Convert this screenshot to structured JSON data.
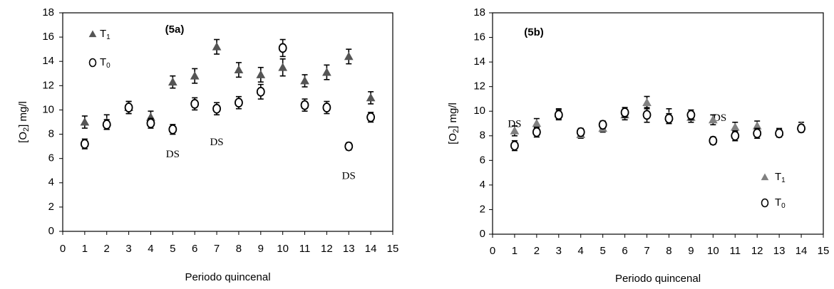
{
  "chart_data": [
    {
      "type": "scatter",
      "panel_label": "(5a)",
      "xlabel": "Periodo quincenal",
      "ylabel_prefix": "[O",
      "ylabel_sub": "2",
      "ylabel_suffix": "] mg/l",
      "xlim": [
        0,
        15
      ],
      "ylim": [
        0,
        18
      ],
      "xticks": [
        "0",
        "1",
        "2",
        "3",
        "4",
        "5",
        "6",
        "7",
        "8",
        "9",
        "10",
        "11",
        "12",
        "13",
        "14",
        "15"
      ],
      "yticks": [
        "0",
        "2",
        "4",
        "6",
        "8",
        "10",
        "12",
        "14",
        "16",
        "18"
      ],
      "legend_position": "top-left",
      "marker_colors": {
        "T1": "#555555",
        "T0": "#000000"
      },
      "series": [
        {
          "key": "T1",
          "name_main": "T",
          "name_sub": "1",
          "marker": "triangle",
          "x": [
            1,
            2,
            3,
            4,
            5,
            6,
            7,
            8,
            9,
            10,
            11,
            12,
            13,
            14
          ],
          "y": [
            9.0,
            9.0,
            10.2,
            9.4,
            12.3,
            12.8,
            15.2,
            13.3,
            12.9,
            13.5,
            12.4,
            13.1,
            14.4,
            11.0
          ],
          "err": [
            0.5,
            0.6,
            0.5,
            0.5,
            0.5,
            0.6,
            0.6,
            0.6,
            0.6,
            0.7,
            0.5,
            0.6,
            0.6,
            0.5
          ]
        },
        {
          "key": "T0",
          "name_main": "T",
          "name_sub": "0",
          "marker": "circle",
          "x": [
            1,
            2,
            3,
            4,
            5,
            6,
            7,
            8,
            9,
            10,
            11,
            12,
            13,
            14
          ],
          "y": [
            7.2,
            8.8,
            10.2,
            8.9,
            8.4,
            10.5,
            10.1,
            10.6,
            11.5,
            15.1,
            10.4,
            10.2,
            7.0,
            9.4
          ],
          "err": [
            0.4,
            0.4,
            0.5,
            0.4,
            0.4,
            0.5,
            0.5,
            0.5,
            0.6,
            0.7,
            0.5,
            0.5,
            0.3,
            0.4
          ]
        }
      ],
      "annotations": [
        {
          "text": "DS",
          "x": 5.0,
          "y": 6.3
        },
        {
          "text": "DS",
          "x": 7.0,
          "y": 7.3
        },
        {
          "text": "DS",
          "x": 13.0,
          "y": 4.5
        }
      ]
    },
    {
      "type": "scatter",
      "panel_label": "(5b)",
      "xlabel": "Periodo quincenal",
      "ylabel_prefix": "[O",
      "ylabel_sub": "2",
      "ylabel_suffix": "] mg/l",
      "xlim": [
        0,
        15
      ],
      "ylim": [
        0,
        18
      ],
      "xticks": [
        "0",
        "1",
        "2",
        "3",
        "4",
        "5",
        "6",
        "7",
        "8",
        "9",
        "10",
        "11",
        "12",
        "13",
        "14",
        "15"
      ],
      "yticks": [
        "0",
        "2",
        "4",
        "6",
        "8",
        "10",
        "12",
        "14",
        "16",
        "18"
      ],
      "legend_position": "bottom-right",
      "marker_colors": {
        "T1": "#808080",
        "T0": "#000000"
      },
      "series": [
        {
          "key": "T1",
          "name_main": "T",
          "name_sub": "1",
          "marker": "triangle",
          "x": [
            1,
            2,
            3,
            4,
            5,
            6,
            7,
            8,
            9,
            10,
            11,
            12,
            13,
            14
          ],
          "y": [
            8.4,
            9.0,
            9.8,
            8.1,
            8.6,
            9.7,
            10.7,
            9.6,
            9.5,
            9.3,
            8.7,
            8.8,
            8.3,
            8.8
          ],
          "err": [
            0.4,
            0.4,
            0.4,
            0.3,
            0.3,
            0.4,
            0.5,
            0.6,
            0.4,
            0.4,
            0.4,
            0.4,
            0.3,
            0.3
          ]
        },
        {
          "key": "T0",
          "name_main": "T",
          "name_sub": "0",
          "marker": "circle",
          "x": [
            1,
            2,
            3,
            4,
            5,
            6,
            7,
            8,
            9,
            10,
            11,
            12,
            13,
            14
          ],
          "y": [
            7.2,
            8.3,
            9.7,
            8.3,
            8.9,
            9.9,
            9.7,
            9.4,
            9.7,
            7.6,
            8.0,
            8.2,
            8.2,
            8.6
          ],
          "err": [
            0.4,
            0.4,
            0.4,
            0.3,
            0.3,
            0.4,
            0.6,
            0.4,
            0.4,
            0.3,
            0.4,
            0.4,
            0.3,
            0.3
          ]
        }
      ],
      "annotations": [
        {
          "text": "DS",
          "x": 1.0,
          "y": 8.9
        },
        {
          "text": "DS",
          "x": 10.3,
          "y": 9.4
        }
      ]
    }
  ]
}
